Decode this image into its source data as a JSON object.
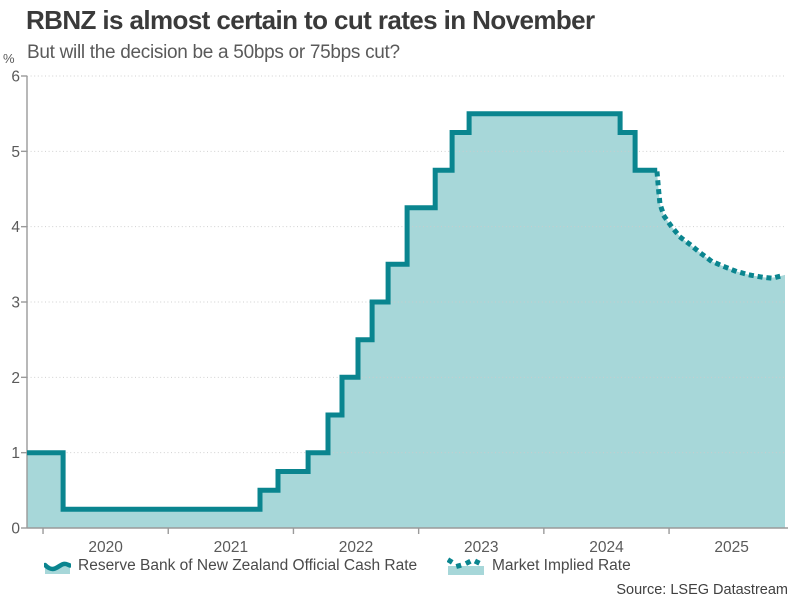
{
  "header": {
    "title": "RBNZ is almost certain to cut rates in November",
    "subtitle": "But will the decision be a 50bps or 75bps cut?",
    "unit_label": "%"
  },
  "source": "Source: LSEG Datastream",
  "colors": {
    "line": "#0a858f",
    "fill": "#a7d7d9",
    "axis": "#9a9a9a",
    "grid": "#cbcbcb",
    "tick_text": "#5a5a5a",
    "title_text": "#3a3a3a"
  },
  "chart_data": {
    "type": "area",
    "title": "RBNZ is almost certain to cut rates in November",
    "subtitle": "But will the decision be a 50bps or 75bps cut?",
    "ylabel": "%",
    "xlabel": "",
    "ylim": [
      0,
      6
    ],
    "yticks": [
      0,
      1,
      2,
      3,
      4,
      5,
      6
    ],
    "xlim": [
      2019.872,
      2025.926
    ],
    "xticks": [
      2020,
      2021,
      2022,
      2023,
      2024,
      2025
    ],
    "grid": true,
    "legend_position": "bottom",
    "series": [
      {
        "name": "Reserve Bank of New Zealand Official Cash Rate",
        "type": "step",
        "style": "solid",
        "points": [
          [
            2019.872,
            1.0
          ],
          [
            2020.16,
            0.25
          ],
          [
            2021.733,
            0.5
          ],
          [
            2021.877,
            0.75
          ],
          [
            2022.117,
            1.0
          ],
          [
            2022.276,
            1.5
          ],
          [
            2022.388,
            2.0
          ],
          [
            2022.516,
            2.5
          ],
          [
            2022.628,
            3.0
          ],
          [
            2022.756,
            3.5
          ],
          [
            2022.908,
            4.25
          ],
          [
            2023.132,
            4.75
          ],
          [
            2023.267,
            5.25
          ],
          [
            2023.403,
            5.5
          ],
          [
            2024.609,
            5.25
          ],
          [
            2024.729,
            4.75
          ],
          [
            2024.905,
            4.75
          ]
        ]
      },
      {
        "name": "Market Implied Rate",
        "type": "line",
        "style": "dotted",
        "points": [
          [
            2024.905,
            4.7
          ],
          [
            2024.916,
            4.5
          ],
          [
            2024.928,
            4.3
          ],
          [
            2024.96,
            4.14
          ],
          [
            2025.02,
            4.0
          ],
          [
            2025.09,
            3.86
          ],
          [
            2025.17,
            3.76
          ],
          [
            2025.25,
            3.65
          ],
          [
            2025.34,
            3.54
          ],
          [
            2025.44,
            3.47
          ],
          [
            2025.53,
            3.41
          ],
          [
            2025.64,
            3.36
          ],
          [
            2025.74,
            3.33
          ],
          [
            2025.8,
            3.32
          ],
          [
            2025.86,
            3.33
          ],
          [
            2025.926,
            3.36
          ]
        ]
      }
    ]
  }
}
